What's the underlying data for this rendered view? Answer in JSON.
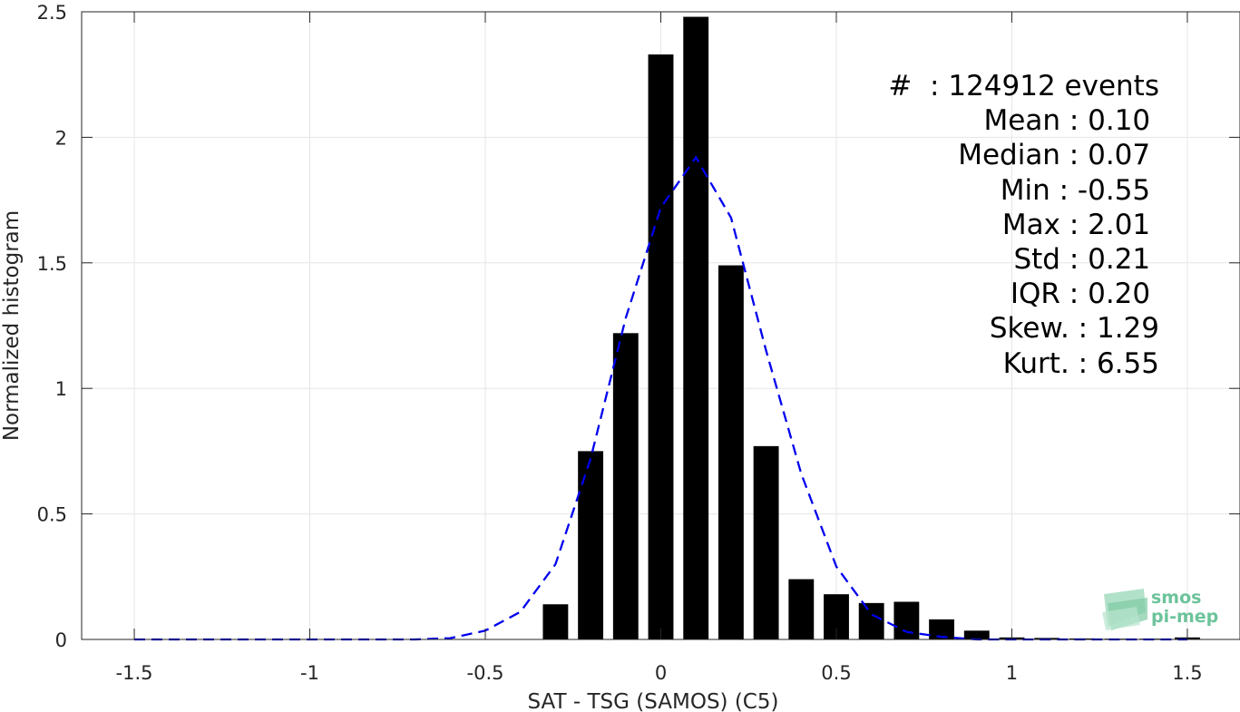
{
  "chart_data": {
    "type": "bar",
    "xlabel": "SAT - TSG (SAMOS) (C5)",
    "ylabel": "Normalized histogram",
    "xlim": [
      -1.65,
      1.65
    ],
    "ylim": [
      0,
      2.5
    ],
    "xticks": [
      -1.5,
      -1,
      -0.5,
      0,
      0.5,
      1,
      1.5
    ],
    "xtick_labels": [
      "-1.5",
      "-1",
      "-0.5",
      "0",
      "0.5",
      "1",
      "1.5"
    ],
    "yticks": [
      0,
      0.5,
      1,
      1.5,
      2,
      2.5
    ],
    "ytick_labels": [
      "0",
      "0.5",
      "1",
      "1.5",
      "2",
      "2.5"
    ],
    "grid": true,
    "bar_color": "#000000",
    "bar_width": 0.072,
    "bars": {
      "x": [
        -0.3,
        -0.2,
        -0.1,
        0.0,
        0.1,
        0.2,
        0.3,
        0.4,
        0.5,
        0.6,
        0.7,
        0.8,
        0.9,
        1.0,
        1.1,
        1.2,
        1.3,
        1.4,
        1.5
      ],
      "values": [
        0.14,
        0.75,
        1.22,
        2.33,
        2.48,
        1.49,
        0.77,
        0.24,
        0.18,
        0.145,
        0.15,
        0.08,
        0.035,
        0.008,
        0.006,
        0.004,
        0.003,
        0.003,
        0.008
      ]
    },
    "fit_curve": {
      "style": "dashed",
      "color": "#0000ee",
      "x": [
        -1.5,
        -1.4,
        -1.3,
        -1.2,
        -1.1,
        -1.0,
        -0.9,
        -0.8,
        -0.7,
        -0.6,
        -0.5,
        -0.4,
        -0.3,
        -0.2,
        -0.1,
        0.0,
        0.1,
        0.2,
        0.3,
        0.4,
        0.5,
        0.6,
        0.7,
        0.8,
        0.9,
        1.0,
        1.1,
        1.2,
        1.3,
        1.4,
        1.5
      ],
      "y": [
        0.0,
        0.0,
        0.0,
        0.0,
        0.0,
        0.0,
        0.0,
        0.0,
        0.0,
        0.005,
        0.035,
        0.11,
        0.3,
        0.72,
        1.28,
        1.72,
        1.92,
        1.68,
        1.15,
        0.66,
        0.29,
        0.1,
        0.03,
        0.01,
        0.0,
        0.0,
        0.0,
        0.0,
        0.0,
        0.0,
        0.0
      ]
    }
  },
  "stats": [
    "#  : 124912 events",
    "Mean : 0.10 ",
    "Median : 0.07 ",
    "Min : -0.55 ",
    "Max : 2.01 ",
    "Std : 0.21 ",
    "IQR : 0.20 ",
    "Skew. : 1.29",
    "Kurt. : 6.55"
  ],
  "logo": {
    "line1": "smos",
    "line2": "pi-mep"
  }
}
